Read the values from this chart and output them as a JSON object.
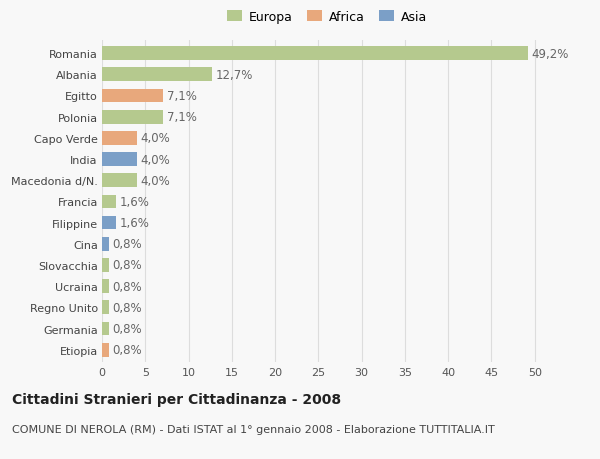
{
  "countries": [
    "Romania",
    "Albania",
    "Egitto",
    "Polonia",
    "Capo Verde",
    "India",
    "Macedonia d/N.",
    "Francia",
    "Filippine",
    "Cina",
    "Slovacchia",
    "Ucraina",
    "Regno Unito",
    "Germania",
    "Etiopia"
  ],
  "values": [
    49.2,
    12.7,
    7.1,
    7.1,
    4.0,
    4.0,
    4.0,
    1.6,
    1.6,
    0.8,
    0.8,
    0.8,
    0.8,
    0.8,
    0.8
  ],
  "labels": [
    "49,2%",
    "12,7%",
    "7,1%",
    "7,1%",
    "4,0%",
    "4,0%",
    "4,0%",
    "1,6%",
    "1,6%",
    "0,8%",
    "0,8%",
    "0,8%",
    "0,8%",
    "0,8%",
    "0,8%"
  ],
  "continents": [
    "Europa",
    "Europa",
    "Africa",
    "Europa",
    "Africa",
    "Asia",
    "Europa",
    "Europa",
    "Asia",
    "Asia",
    "Europa",
    "Europa",
    "Europa",
    "Europa",
    "Africa"
  ],
  "continent_colors": {
    "Europa": "#b5c98e",
    "Africa": "#e8a87c",
    "Asia": "#7b9fc7"
  },
  "legend_labels": [
    "Europa",
    "Africa",
    "Asia"
  ],
  "legend_colors": [
    "#b5c98e",
    "#e8a87c",
    "#7b9fc7"
  ],
  "title": "Cittadini Stranieri per Cittadinanza - 2008",
  "subtitle": "COMUNE DI NEROLA (RM) - Dati ISTAT al 1° gennaio 2008 - Elaborazione TUTTITALIA.IT",
  "xlim": [
    0,
    52
  ],
  "xticks": [
    0,
    5,
    10,
    15,
    20,
    25,
    30,
    35,
    40,
    45,
    50
  ],
  "background_color": "#f8f8f8",
  "grid_color": "#dddddd",
  "bar_height": 0.65,
  "label_fontsize": 8.5,
  "tick_fontsize": 8,
  "title_fontsize": 10,
  "subtitle_fontsize": 8,
  "legend_fontsize": 9
}
